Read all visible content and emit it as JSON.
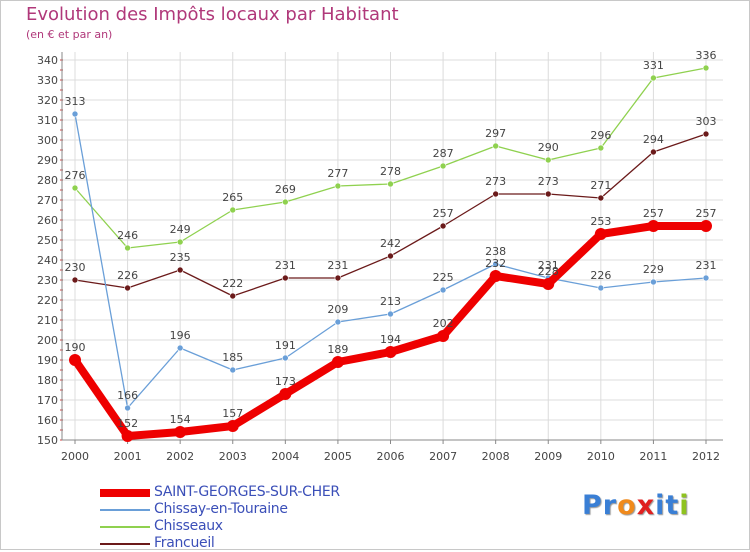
{
  "header": {
    "title": "Evolution des Impôts locaux par Habitant",
    "subtitle": "(en € et par an)"
  },
  "logo": {
    "letters": [
      "P",
      "r",
      "o",
      "x",
      "i",
      "t",
      "i"
    ],
    "colors": [
      "#3a7fd5",
      "#3a7fd5",
      "#f08a1c",
      "#e02020",
      "#3a7fd5",
      "#3a7fd5",
      "#8fc31f"
    ]
  },
  "chart_data": {
    "type": "line",
    "title": "Evolution des Impôts locaux par Habitant",
    "subtitle": "(en € et par an)",
    "xlabel": "",
    "ylabel": "",
    "x": [
      "2000",
      "2001",
      "2002",
      "2003",
      "2004",
      "2005",
      "2006",
      "2007",
      "2008",
      "2009",
      "2010",
      "2011",
      "2012"
    ],
    "ylim": [
      150,
      340
    ],
    "yticks": [
      150,
      160,
      170,
      180,
      190,
      200,
      210,
      220,
      230,
      240,
      250,
      260,
      270,
      280,
      290,
      300,
      310,
      320,
      330,
      340
    ],
    "grid": true,
    "legend_position": "bottom-left",
    "series": [
      {
        "name": "Francueil",
        "color": "#6b1a1a",
        "values": [
          230,
          226,
          235,
          222,
          231,
          231,
          242,
          257,
          273,
          273,
          271,
          294,
          303
        ]
      },
      {
        "name": "Chisseaux",
        "color": "#8fd14f",
        "values": [
          276,
          246,
          249,
          265,
          269,
          277,
          278,
          287,
          297,
          290,
          296,
          331,
          336
        ]
      },
      {
        "name": "Chissay-en-Touraine",
        "color": "#6a9fd8",
        "values": [
          313,
          166,
          196,
          185,
          191,
          209,
          213,
          225,
          238,
          231,
          226,
          229,
          231
        ]
      },
      {
        "name": "SAINT-GEORGES-SUR-CHER",
        "color": "#ee0000",
        "values": [
          190,
          152,
          154,
          157,
          173,
          189,
          194,
          202,
          232,
          228,
          253,
          257,
          257
        ]
      }
    ],
    "legend_order": [
      "SAINT-GEORGES-SUR-CHER",
      "Chissay-en-Touraine",
      "Chisseaux",
      "Francueil"
    ]
  }
}
